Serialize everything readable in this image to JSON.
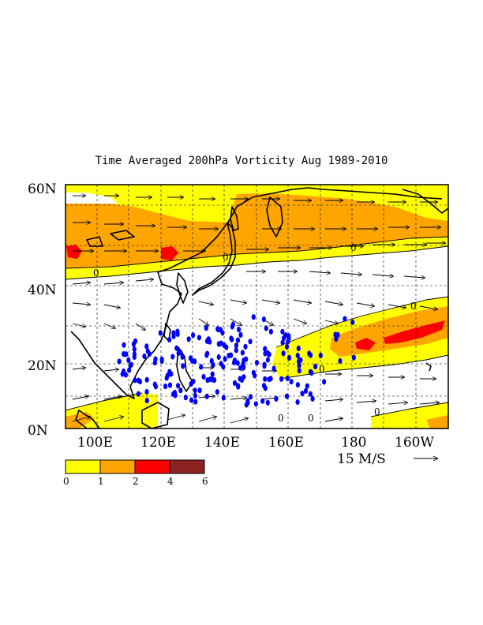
{
  "title": "Time Averaged 200hPa Vorticity  Aug 1989-2010",
  "map": {
    "lat_range": [
      "0N",
      "60N"
    ],
    "lon_range": [
      "90E",
      "150W"
    ],
    "lat_ticks": [
      "60N",
      "40N",
      "20N",
      "0N"
    ],
    "lon_ticks": [
      "100E",
      "120E",
      "140E",
      "160E",
      "180",
      "160W"
    ],
    "grid": "dashed"
  },
  "colorbar": {
    "levels": [
      "0",
      "1",
      "2",
      "4",
      "6"
    ],
    "colors": [
      "#ffff00",
      "#ffa500",
      "#ff0000",
      "#8b2323"
    ]
  },
  "reference_vector": {
    "label": "15 M/S"
  },
  "contour_label": "0",
  "colors": {
    "marker": "#0000ff",
    "land": "#000000",
    "contour": "#000000"
  }
}
